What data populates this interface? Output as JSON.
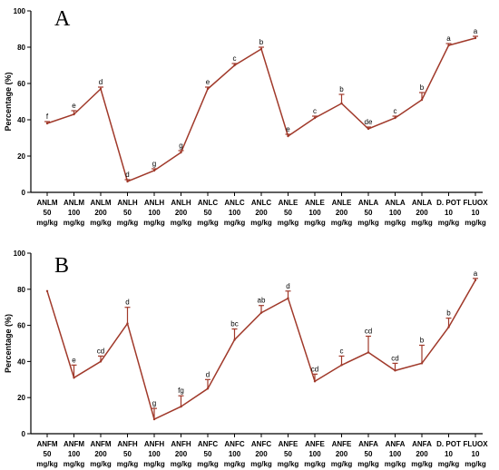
{
  "chart_data": [
    {
      "type": "line",
      "panel_label": "A",
      "ylabel": "Percentage (%)",
      "ylim": [
        0,
        100
      ],
      "yticks": [
        "0",
        "20",
        "40",
        "60",
        "80",
        "100"
      ],
      "categories": [
        [
          "ANLM",
          "50",
          "mg/kg"
        ],
        [
          "ANLM",
          "100",
          "mg/kg"
        ],
        [
          "ANLM",
          "200",
          "mg/kg"
        ],
        [
          "ANLH",
          "50",
          "mg/kg"
        ],
        [
          "ANLH",
          "100",
          "mg/kg"
        ],
        [
          "ANLH",
          "200",
          "mg/kg"
        ],
        [
          "ANLC",
          "50",
          "mg/kg"
        ],
        [
          "ANLC",
          "100",
          "mg/kg"
        ],
        [
          "ANLC",
          "200",
          "mg/kg"
        ],
        [
          "ANLE",
          "50",
          "mg/kg"
        ],
        [
          "ANLE",
          "100",
          "mg/kg"
        ],
        [
          "ANLE",
          "200",
          "mg/kg"
        ],
        [
          "ANLA",
          "50",
          "mg/kg"
        ],
        [
          "ANLA",
          "100",
          "mg/kg"
        ],
        [
          "ANLA",
          "200",
          "mg/kg"
        ],
        [
          "D. POT",
          "10",
          "mg/kg"
        ],
        [
          "FLUOX",
          "10",
          "mg/kg"
        ]
      ],
      "values": [
        38,
        43,
        57,
        6,
        12,
        22,
        57,
        70,
        79,
        31,
        41,
        49,
        35,
        41,
        51,
        81,
        85
      ],
      "errors": [
        1,
        2,
        1,
        1,
        1,
        1,
        1,
        1,
        1,
        1,
        1,
        5,
        1,
        1,
        4,
        1,
        1
      ],
      "significance": [
        "f",
        "e",
        "d",
        "d",
        "g",
        "g",
        "e",
        "c",
        "b",
        "e",
        "c",
        "b",
        "de",
        "c",
        "b",
        "a",
        "a"
      ]
    },
    {
      "type": "line",
      "panel_label": "B",
      "ylabel": "Percentage (%)",
      "ylim": [
        0,
        100
      ],
      "yticks": [
        "0",
        "20",
        "40",
        "60",
        "80",
        "100"
      ],
      "categories": [
        [
          "ANFM",
          "50",
          "mg/kg"
        ],
        [
          "ANFM",
          "100",
          "mg/kg"
        ],
        [
          "ANFM",
          "200",
          "mg/kg"
        ],
        [
          "ANFH",
          "50",
          "mg/kg"
        ],
        [
          "ANFH",
          "100",
          "mg/kg"
        ],
        [
          "ANFH",
          "200",
          "mg/kg"
        ],
        [
          "ANFC",
          "50",
          "mg/kg"
        ],
        [
          "ANFC",
          "100",
          "mg/kg"
        ],
        [
          "ANFC",
          "200",
          "mg/kg"
        ],
        [
          "ANFE",
          "50",
          "mg/kg"
        ],
        [
          "ANFE",
          "100",
          "mg/kg"
        ],
        [
          "ANFE",
          "200",
          "mg/kg"
        ],
        [
          "ANFA",
          "50",
          "mg/kg"
        ],
        [
          "ANFA",
          "100",
          "mg/kg"
        ],
        [
          "ANFA",
          "200",
          "mg/kg"
        ],
        [
          "D. POT",
          "10",
          "mg/kg"
        ],
        [
          "FLUOX",
          "10",
          "mg/kg"
        ]
      ],
      "values": [
        79,
        31,
        40,
        61,
        8,
        15,
        25,
        52,
        67,
        75,
        29,
        38,
        45,
        35,
        39,
        59,
        85
      ],
      "errors": [
        0,
        7,
        3,
        9,
        6,
        6,
        5,
        6,
        4,
        4,
        4,
        5,
        9,
        4,
        10,
        5,
        1
      ],
      "significance": [
        "",
        "e",
        "cd",
        "d",
        "g",
        "fg",
        "d",
        "bc",
        "ab",
        "d",
        "cd",
        "c",
        "cd",
        "cd",
        "b",
        "b",
        "a"
      ]
    }
  ],
  "colors": {
    "line": "#a0392a",
    "axis": "#000000"
  }
}
